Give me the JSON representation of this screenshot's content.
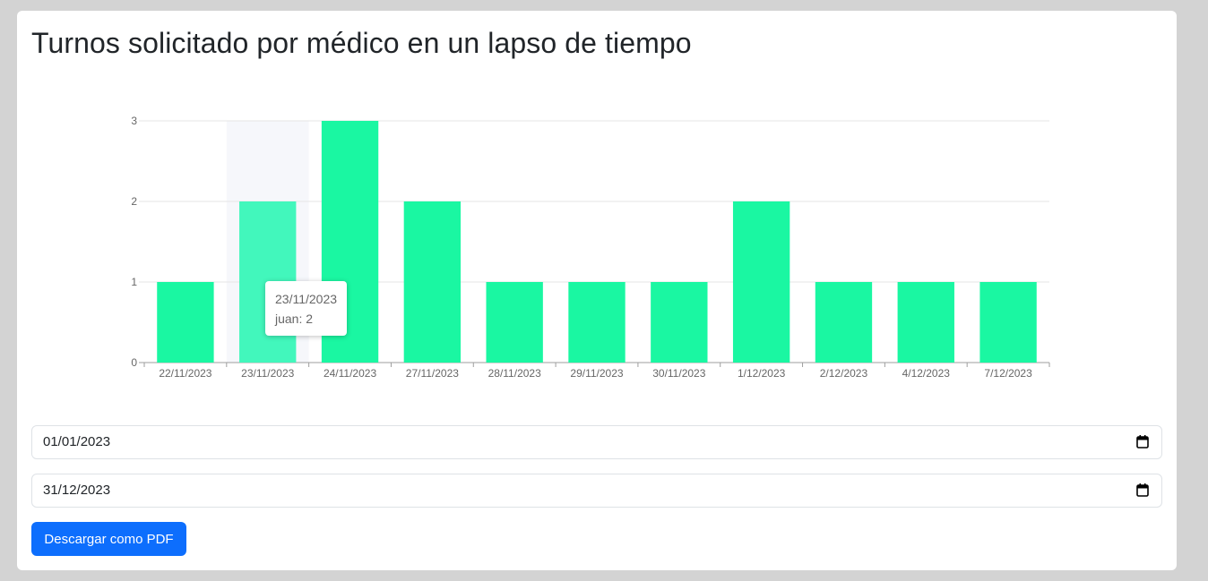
{
  "page": {
    "title": "Turnos solicitado por médico en un lapso de tiempo"
  },
  "chart_data": {
    "type": "bar",
    "categories": [
      "22/11/2023",
      "23/11/2023",
      "24/11/2023",
      "27/11/2023",
      "28/11/2023",
      "29/11/2023",
      "30/11/2023",
      "1/12/2023",
      "2/12/2023",
      "4/12/2023",
      "7/12/2023"
    ],
    "series": [
      {
        "name": "juan",
        "values": [
          1,
          2,
          3,
          2,
          1,
          1,
          1,
          2,
          1,
          1,
          1
        ],
        "color": "#1af7a2"
      }
    ],
    "title": "",
    "xlabel": "",
    "ylabel": "",
    "ylim": [
      0,
      3
    ],
    "yticks": [
      "0",
      "1",
      "2",
      "3"
    ],
    "grid": true,
    "legend": "none",
    "hover_color": "#42f7bc",
    "hover_band_color": "#f6f7fb",
    "tooltip": {
      "category": "23/11/2023",
      "text": "juan: 2",
      "index": 1
    }
  },
  "filters": {
    "start_date": "01/01/2023",
    "end_date": "31/12/2023"
  },
  "actions": {
    "download_label": "Descargar como PDF"
  },
  "icons": {
    "calendar": "calendar-icon"
  }
}
